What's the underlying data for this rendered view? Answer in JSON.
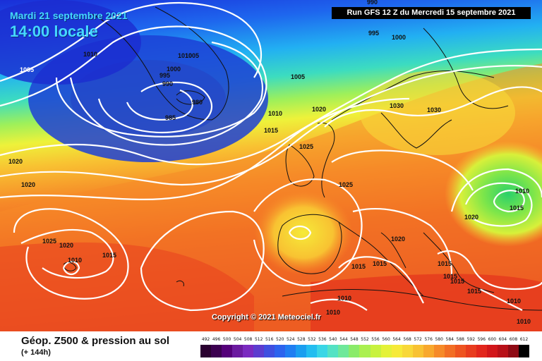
{
  "header": {
    "date": "Mardi 21 septembre 2021",
    "time": "14:00 locale",
    "run": "Run GFS 12 Z du Mercredi 15 septembre 2021"
  },
  "copyright": "Copyright © 2021 Meteociel.fr",
  "footer": {
    "title": "Géop. Z500 & pression au sol",
    "subtitle": "(+ 144h)"
  },
  "scale": {
    "labels": [
      "492",
      "496",
      "500",
      "504",
      "508",
      "512",
      "516",
      "520",
      "524",
      "528",
      "532",
      "536",
      "540",
      "544",
      "548",
      "552",
      "556",
      "560",
      "564",
      "568",
      "572",
      "576",
      "580",
      "584",
      "588",
      "592",
      "596",
      "600",
      "604",
      "608",
      "612"
    ],
    "colors": [
      "#2a0030",
      "#3c0050",
      "#55007a",
      "#6b1aa0",
      "#7a2ac0",
      "#5c3ccf",
      "#3f4fe0",
      "#2c63ee",
      "#1f7ef2",
      "#1a9ef0",
      "#23bdf0",
      "#3ad6e6",
      "#54e2c4",
      "#6ee89a",
      "#8aeb6a",
      "#aaf050",
      "#c8f23e",
      "#e4f238",
      "#f6ea38",
      "#f8d838",
      "#f8c232",
      "#f8a82c",
      "#f68a28",
      "#f26e24",
      "#ee5420",
      "#e83c1e",
      "#e2261c",
      "#d2161a",
      "#b81018",
      "#8e0a14",
      "#000000"
    ]
  },
  "isobar_labels": [
    {
      "text": "990"
    },
    {
      "text": "995"
    },
    {
      "text": "1000"
    },
    {
      "text": "1005"
    },
    {
      "text": "1010"
    },
    {
      "text": "1005"
    },
    {
      "text": "1010"
    },
    {
      "text": "1005"
    },
    {
      "text": "1000"
    },
    {
      "text": "995"
    },
    {
      "text": "990"
    },
    {
      "text": "985"
    },
    {
      "text": "980"
    },
    {
      "text": "1005"
    },
    {
      "text": "1010"
    },
    {
      "text": "1015"
    },
    {
      "text": "1020"
    },
    {
      "text": "1030"
    },
    {
      "text": "1030"
    },
    {
      "text": "1025"
    },
    {
      "text": "1025"
    },
    {
      "text": "1020"
    },
    {
      "text": "1020"
    },
    {
      "text": "1010"
    },
    {
      "text": "1015"
    },
    {
      "text": "1020"
    },
    {
      "text": "1020"
    },
    {
      "text": "1025"
    },
    {
      "text": "1020"
    },
    {
      "text": "1010"
    },
    {
      "text": "1015"
    },
    {
      "text": "1015"
    },
    {
      "text": "1015"
    },
    {
      "text": "1015"
    },
    {
      "text": "1015"
    },
    {
      "text": "1015"
    },
    {
      "text": "1015"
    },
    {
      "text": "1010"
    },
    {
      "text": "1010"
    },
    {
      "text": "1010"
    },
    {
      "text": "1010"
    }
  ]
}
